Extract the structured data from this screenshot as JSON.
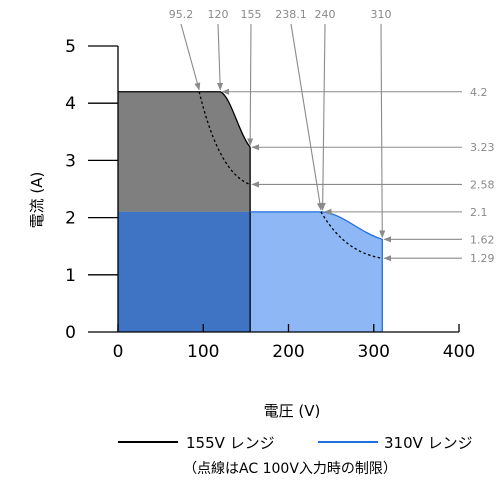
{
  "chart_data": {
    "type": "area",
    "xlabel": "電圧 (V)",
    "ylabel": "電流 (A)",
    "xlim": [
      0,
      400
    ],
    "ylim": [
      0,
      5
    ],
    "x_ticks": [
      "0",
      "100",
      "200",
      "300",
      "400"
    ],
    "y_ticks": [
      "0",
      "1",
      "2",
      "3",
      "4",
      "5"
    ],
    "series": [
      {
        "name": "155V レンジ",
        "color": "#000000",
        "fill": "#7f7f7f",
        "points": [
          [
            0,
            4.2
          ],
          [
            120,
            4.2
          ],
          [
            155,
            3.23
          ],
          [
            155,
            0
          ]
        ],
        "limit_points": [
          [
            95.2,
            4.2
          ],
          [
            155,
            2.58
          ]
        ]
      },
      {
        "name": "310V レンジ",
        "color": "#1f6fe0",
        "fill": "#8db8f5",
        "points": [
          [
            0,
            2.1
          ],
          [
            240,
            2.1
          ],
          [
            310,
            1.62
          ],
          [
            310,
            0
          ]
        ],
        "limit_points": [
          [
            238.1,
            2.1
          ],
          [
            310,
            1.29
          ]
        ]
      }
    ],
    "overlap_fill": "#3f74c4",
    "x_annotations": [
      "95.2",
      "120",
      "155",
      "238.1",
      "240",
      "310"
    ],
    "y_annotations": [
      "4.2",
      "3.23",
      "2.58",
      "2.1",
      "1.62",
      "1.29"
    ],
    "note": "（点線はAC 100V入力時の制限）"
  }
}
